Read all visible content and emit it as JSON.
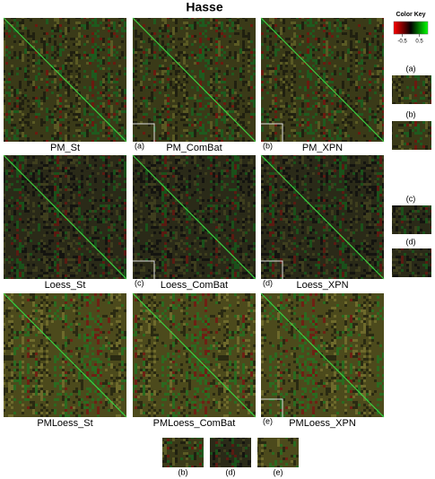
{
  "title": "Hasse",
  "color_key": {
    "title": "Color Key",
    "ticks": [
      -0.5,
      0.5
    ],
    "lim": [
      -1,
      1
    ]
  },
  "panels": [
    {
      "name": "PM_St"
    },
    {
      "name": "PM_ComBat",
      "tag": "(a)"
    },
    {
      "name": "PM_XPN",
      "tag": "(b)"
    },
    {
      "name": "Loess_St"
    },
    {
      "name": "Loess_ComBat",
      "tag": "(c)"
    },
    {
      "name": "Loess_XPN",
      "tag": "(d)"
    },
    {
      "name": "PMLoess_St"
    },
    {
      "name": "PMLoess_ComBat"
    },
    {
      "name": "PMLoess_XPN",
      "tag": "(e)"
    }
  ],
  "insets_right": [
    "(a)",
    "(b)",
    "(c)",
    "(d)"
  ],
  "insets_bottom": [
    "(b)",
    "(d)",
    "(e)"
  ]
}
